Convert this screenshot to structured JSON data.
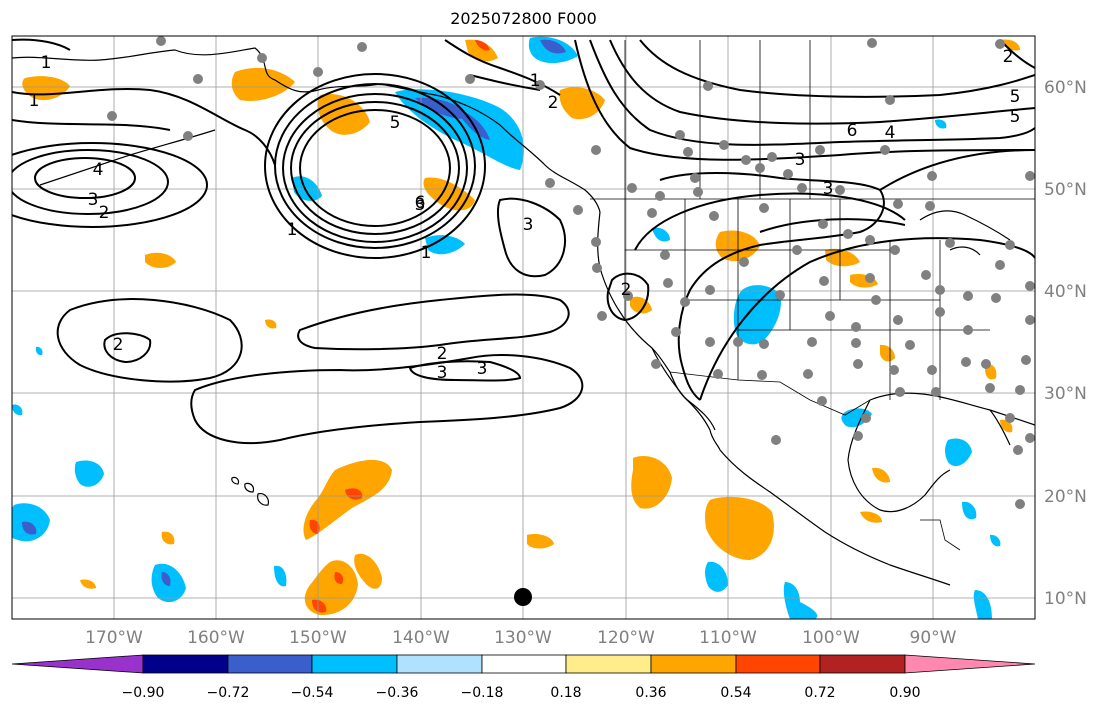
{
  "title": "2025072800 F000",
  "map": {
    "lon_labels": [
      "170°W",
      "160°W",
      "150°W",
      "140°W",
      "130°W",
      "120°W",
      "110°W",
      "100°W",
      "90°W"
    ],
    "lat_labels": [
      "60°N",
      "50°N",
      "40°N",
      "30°N",
      "20°N",
      "10°N"
    ],
    "contour_labels": [
      "1",
      "1",
      "2",
      "3",
      "4",
      "2",
      "3",
      "5",
      "6",
      "1",
      "1",
      "2",
      "3",
      "3",
      "2",
      "3",
      "6",
      "3",
      "3",
      "4",
      "5",
      "2",
      "1",
      "2",
      "5"
    ],
    "colors": {
      "contour": "#000000",
      "station": "#808080",
      "marker": "#000000",
      "grid": "#999999"
    }
  },
  "colorbar": {
    "tick_labels": [
      "−0.90",
      "−0.72",
      "−0.54",
      "−0.36",
      "−0.18",
      "0.18",
      "0.36",
      "0.54",
      "0.72",
      "0.90"
    ],
    "colors": [
      "#9932cc",
      "#00008b",
      "#3a5fcd",
      "#00bfff",
      "#b0e2ff",
      "#ffffff",
      "#ffec8b",
      "#ffa500",
      "#ff4500",
      "#b22222",
      "#ff88b0"
    ]
  }
}
